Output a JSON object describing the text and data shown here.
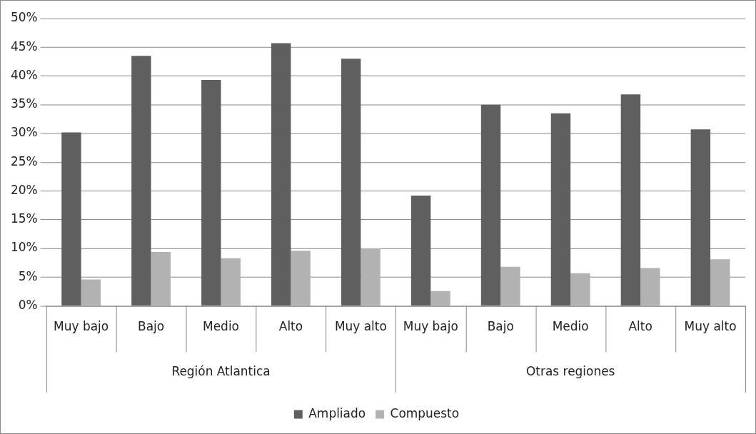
{
  "chart_data": {
    "type": "bar",
    "categories": [
      "Muy bajo",
      "Bajo",
      "Medio",
      "Alto",
      "Muy alto",
      "Muy bajo",
      "Bajo",
      "Medio",
      "Alto",
      "Muy alto"
    ],
    "series": [
      {
        "name": "Ampliado",
        "color": "#5f5f5f",
        "values": [
          30.2,
          43.5,
          39.3,
          45.7,
          43.0,
          19.2,
          35.0,
          33.5,
          36.8,
          30.7
        ]
      },
      {
        "name": "Compuesto",
        "color": "#b2b2b2",
        "values": [
          4.6,
          9.4,
          8.3,
          9.6,
          10.0,
          2.6,
          6.8,
          5.7,
          6.6,
          8.1
        ]
      }
    ],
    "annotations": [
      "Región Atlantica",
      "Otras regiones"
    ],
    "ylim": [
      0,
      50
    ],
    "yticks": [
      {
        "value": 0,
        "label": "0%"
      },
      {
        "value": 5,
        "label": "5%"
      },
      {
        "value": 10,
        "label": "10%"
      },
      {
        "value": 15,
        "label": "15%"
      },
      {
        "value": 20,
        "label": "20%"
      },
      {
        "value": 25,
        "label": "25%"
      },
      {
        "value": 30,
        "label": "30%"
      },
      {
        "value": 35,
        "label": "35%"
      },
      {
        "value": 40,
        "label": "40%"
      },
      {
        "value": 45,
        "label": "45%"
      },
      {
        "value": 50,
        "label": "50%"
      }
    ],
    "grid": "y",
    "legend": "bottom"
  }
}
